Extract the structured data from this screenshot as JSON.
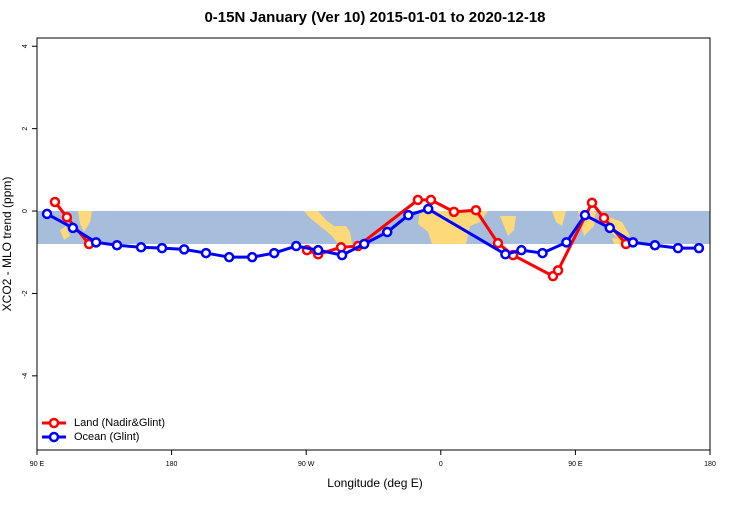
{
  "chart_data": {
    "type": "line",
    "title": "0-15N January (Ver 10)   2015-01-01 to 2020-12-18",
    "xlabel": "Longitude (deg E)",
    "ylabel": "XCO2 - MLO trend (ppm)",
    "xlim": [
      90,
      540
    ],
    "ylim": [
      -5.8,
      4.2
    ],
    "xticks": [
      {
        "value": 90,
        "label": "90 E"
      },
      {
        "value": 180,
        "label": "180"
      },
      {
        "value": 270,
        "label": "90 W"
      },
      {
        "value": 360,
        "label": "0"
      },
      {
        "value": 450,
        "label": "90 E"
      },
      {
        "value": 540,
        "label": "180"
      }
    ],
    "yticks": [
      4,
      2,
      0,
      -2,
      -4
    ],
    "legend": "bottom-left",
    "series": [
      {
        "name": "Land (Nadir&Glint)",
        "color": "#ff0000",
        "x": [
          102,
          110,
          124.8,
          270.5,
          278,
          293.3,
          304.6,
          344.7,
          353.4,
          368.8,
          383.5,
          398.2,
          408.3,
          435,
          438.4,
          461.1,
          469.1,
          483.8
        ],
        "values": [
          0.22,
          -0.15,
          -0.8,
          -0.95,
          -1.05,
          -0.88,
          -0.85,
          0.27,
          0.27,
          -0.02,
          0.02,
          -0.78,
          -1.07,
          -1.58,
          -1.44,
          0.2,
          -0.17,
          -0.8
        ],
        "breaks_after": [
          2
        ]
      },
      {
        "name": "Ocean (Glint)",
        "color": "#0000ff",
        "x": [
          96.7,
          114,
          129.5,
          143.5,
          159.6,
          173.6,
          188.4,
          203,
          218.5,
          233.9,
          248.6,
          263.3,
          278,
          294,
          308.8,
          324.2,
          338.3,
          351.6,
          403.2,
          413.9,
          428,
          444,
          456.4,
          473,
          488.5,
          503.2,
          518.6,
          532.6
        ],
        "values": [
          -0.07,
          -0.41,
          -0.76,
          -0.83,
          -0.88,
          -0.9,
          -0.93,
          -1.02,
          -1.12,
          -1.12,
          -1.02,
          -0.85,
          -0.95,
          -1.07,
          -0.8,
          -0.51,
          -0.1,
          0.05,
          -1.05,
          -0.95,
          -1.02,
          -0.76,
          -0.1,
          -0.41,
          -0.76,
          -0.83,
          -0.9,
          -0.9
        ]
      }
    ]
  }
}
